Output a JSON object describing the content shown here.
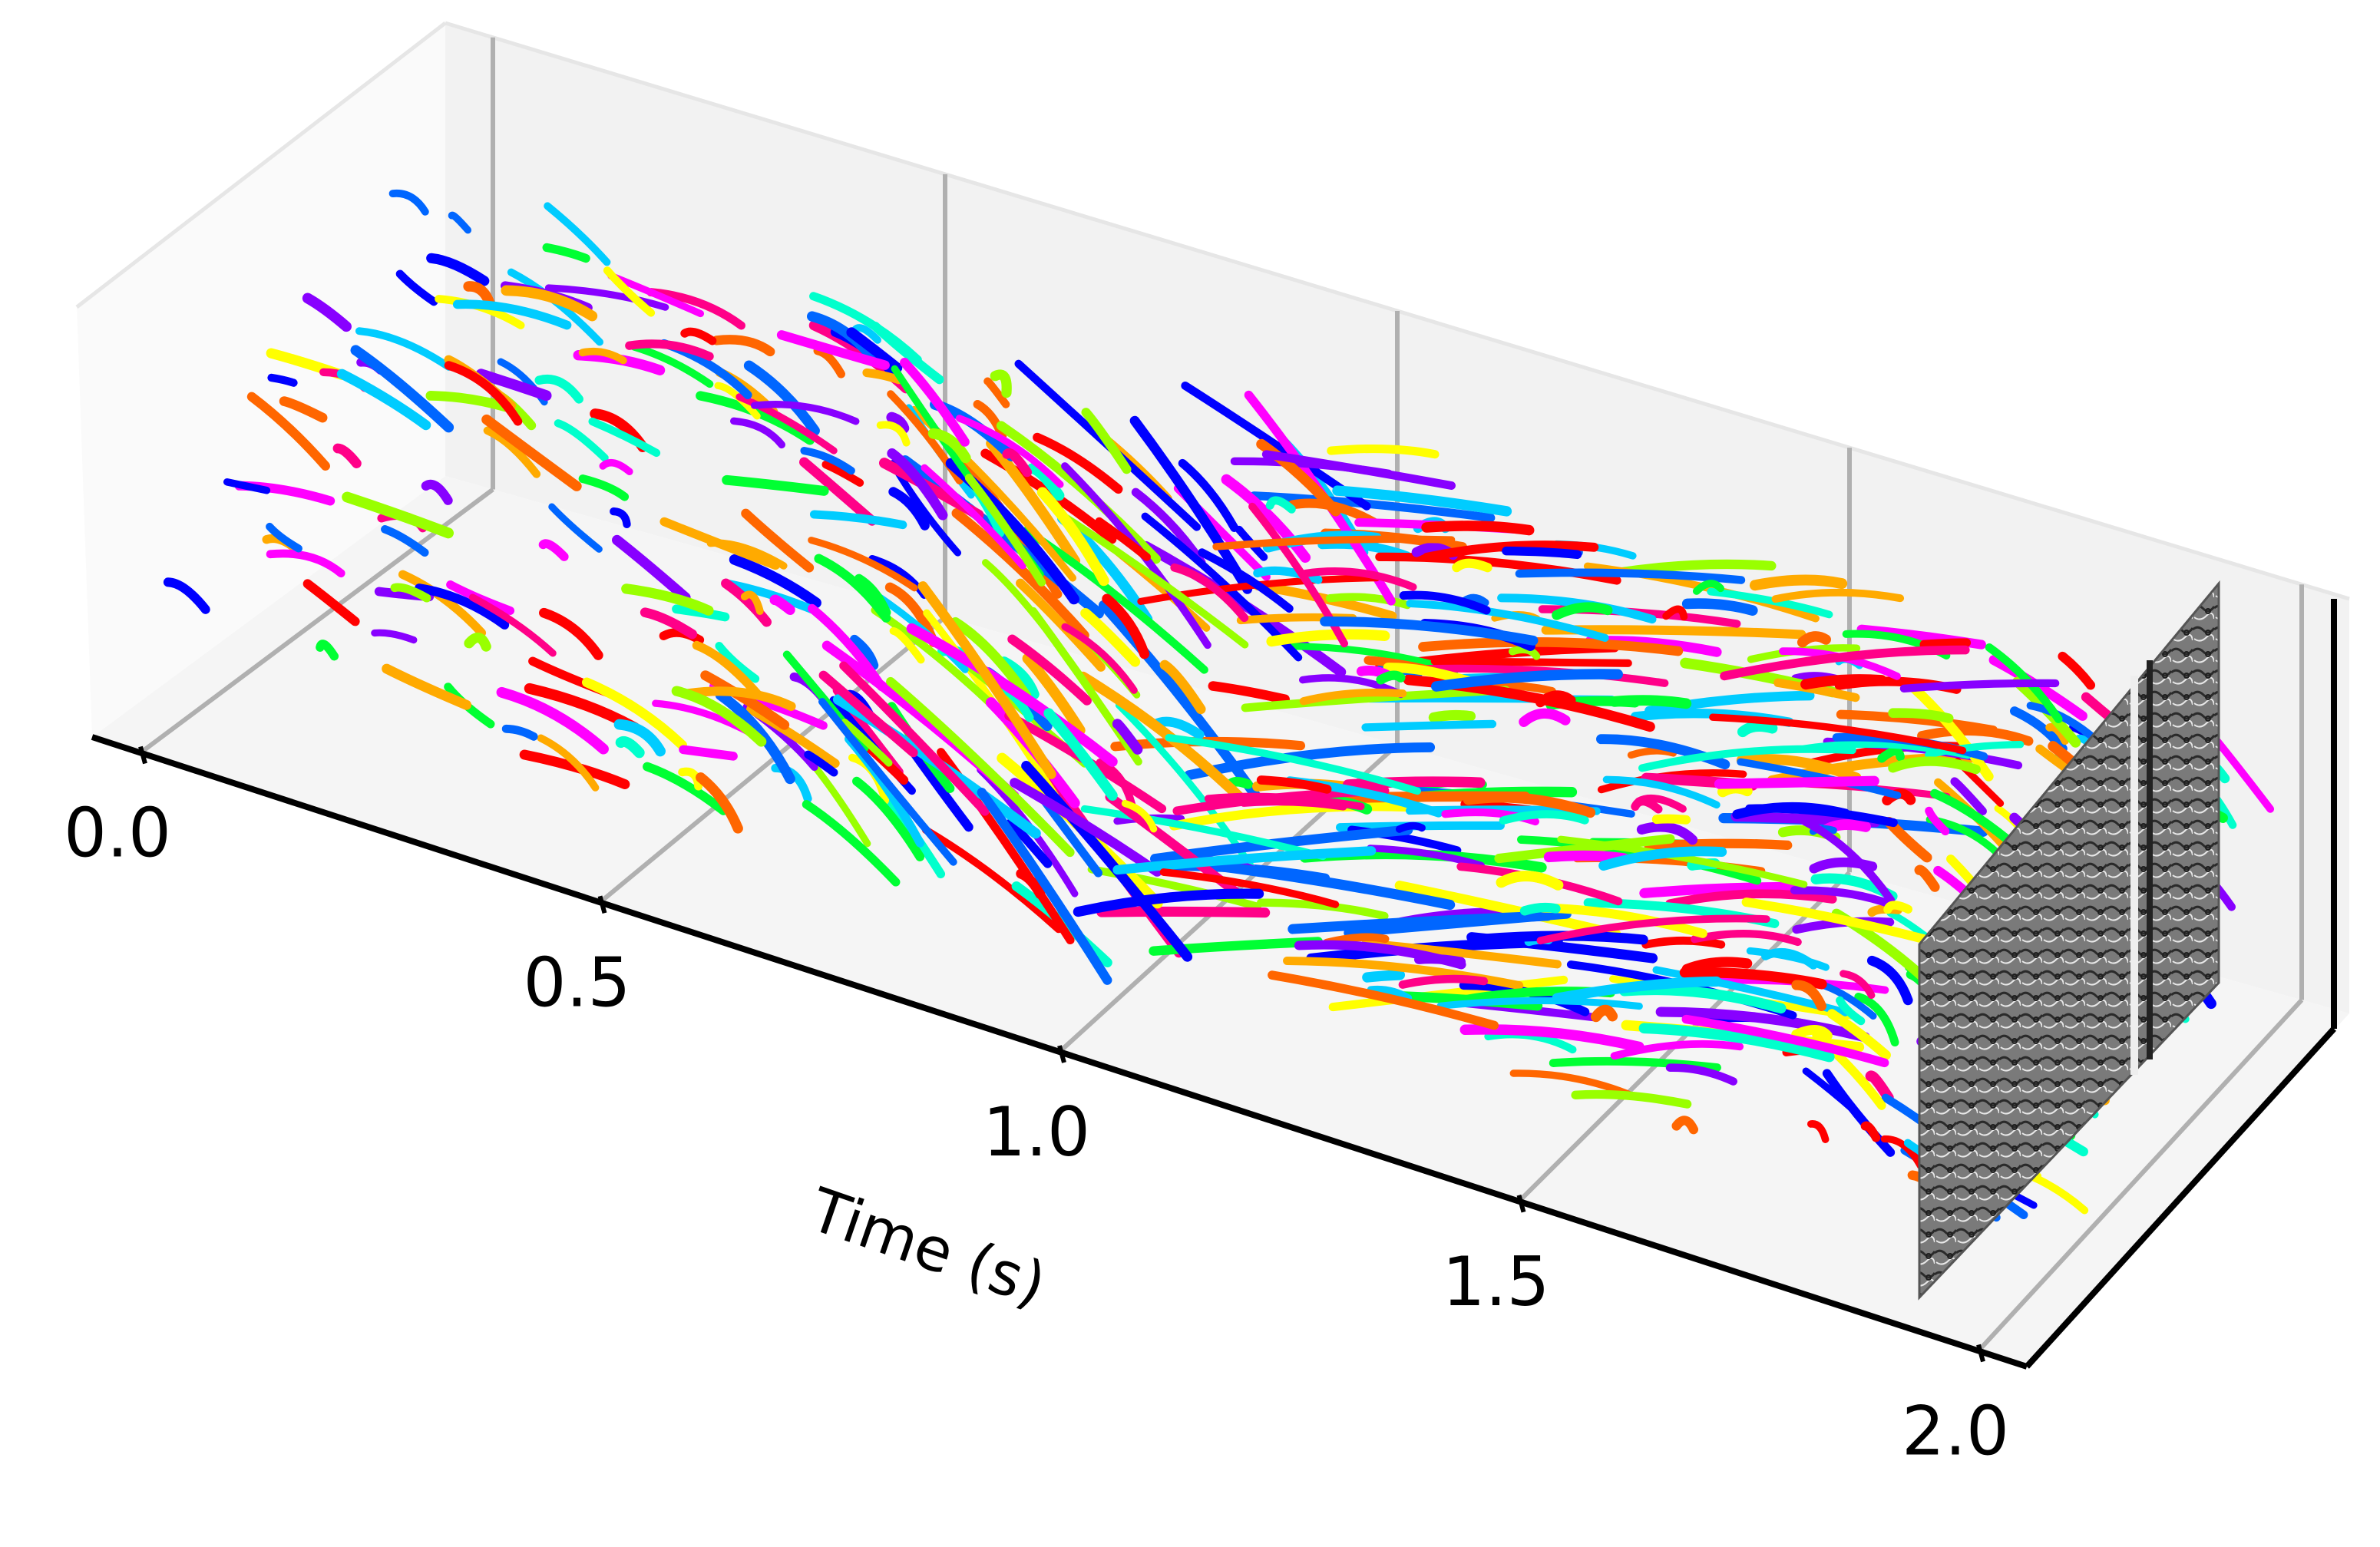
{
  "chart_data": {
    "type": "scatter",
    "projection": "3d",
    "title": "",
    "xlabel": "Time (s)",
    "ylabel": "",
    "zlabel": "",
    "xlim": [
      0.0,
      2.0
    ],
    "x_ticks": [
      0.0,
      0.5,
      1.0,
      1.5,
      2.0
    ],
    "x_tick_labels": [
      "0.0",
      "0.5",
      "1.0",
      "1.5",
      "2.0"
    ],
    "grid": true,
    "legend": "none",
    "series_description": "event-feature trajectories over time, each drawn in a distinct hue",
    "track_colors": [
      "#ff0000",
      "#ff6600",
      "#ffaa00",
      "#ffff00",
      "#99ff00",
      "#00ff33",
      "#00ffcc",
      "#00ccff",
      "#0066ff",
      "#0000ff",
      "#8800ff",
      "#ff00ff",
      "#ff0088"
    ],
    "background_image": "grayscale-event-frame-at-t-2.0",
    "pane_color": "#f2f2f2",
    "grid_color": "#b0b0b0"
  }
}
